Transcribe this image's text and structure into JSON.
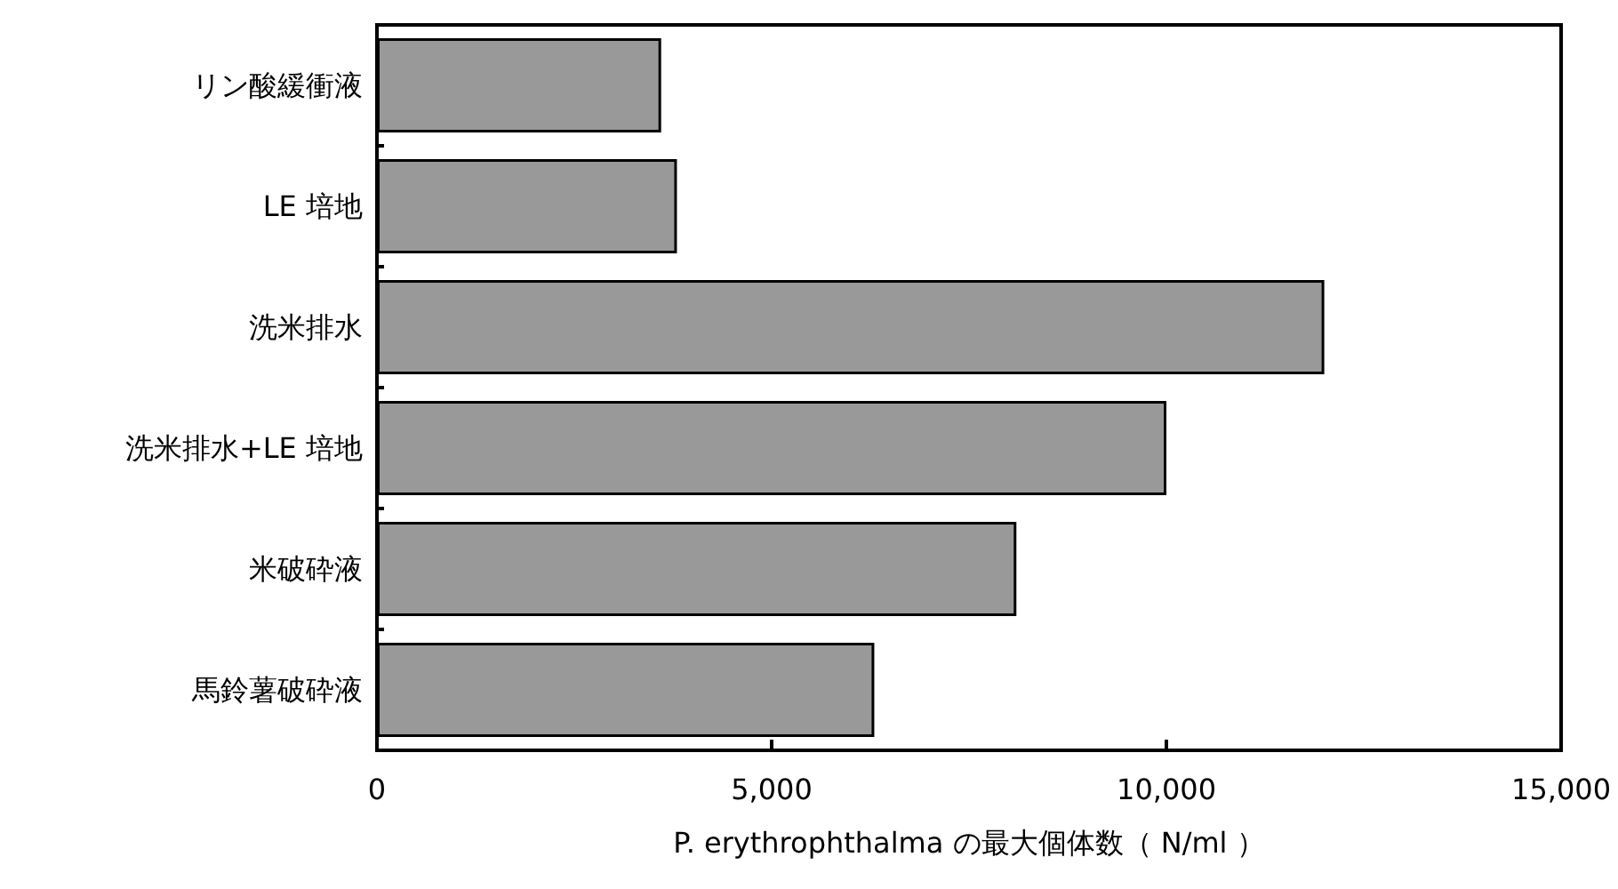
{
  "chart_data": {
    "type": "bar",
    "orientation": "horizontal",
    "categories": [
      "リン酸緩衝液",
      "LE 培地",
      "洗米排水",
      "洗米排水+LE 培地",
      "米破砕液",
      "馬鈴薯破砕液"
    ],
    "values": [
      3600,
      3800,
      12000,
      10000,
      8100,
      6300
    ],
    "color": "#999999",
    "xlabel": "P. erythrophthalma の最大個体数（ N/ml ）",
    "xlim": [
      0,
      15000
    ],
    "xticks": [
      {
        "value": 0,
        "label": "0"
      },
      {
        "value": 5000,
        "label": "5,000"
      },
      {
        "value": 10000,
        "label": "10,000"
      },
      {
        "value": 15000,
        "label": "15,000"
      }
    ],
    "grid": false
  }
}
